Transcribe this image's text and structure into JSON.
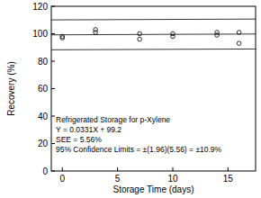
{
  "chart_data": {
    "type": "scatter",
    "x_label": "Storage Time (days)",
    "y_label": "Recovery (%)",
    "xlim": [
      -1,
      17.5
    ],
    "xticks": [
      0,
      5,
      10,
      15
    ],
    "ylim": [
      0,
      120
    ],
    "yticks": [
      0,
      20,
      40,
      60,
      80,
      100,
      120
    ],
    "grid": false,
    "annotations": [
      "Refrigerated Storage for p-Xylene",
      "Y = 0.0331X + 99.2",
      "SEE = 5.56%",
      "95% Confidence Limits = ±(1.96)(5.56) = ±10.9%"
    ],
    "series": [
      {
        "type": "scatter",
        "marker": "open_circle",
        "color": "#000000",
        "x": [
          0,
          0,
          3,
          3,
          7,
          7,
          10,
          10,
          14,
          14,
          16,
          16
        ],
        "values": [
          98,
          97,
          103,
          101,
          100,
          96,
          100,
          98,
          101,
          99,
          101,
          93
        ]
      },
      {
        "type": "line",
        "line_style": "solid",
        "color": "#000000",
        "x": [
          -1,
          17.5
        ],
        "values": [
          99.2,
          99.8
        ]
      },
      {
        "type": "line",
        "line_style": "solid",
        "color": "#000000",
        "x": [
          -1,
          17.5
        ],
        "values": [
          110.1,
          110.7
        ]
      },
      {
        "type": "line",
        "line_style": "solid",
        "color": "#000000",
        "x": [
          -1,
          17.5
        ],
        "values": [
          88.3,
          88.9
        ]
      }
    ]
  }
}
